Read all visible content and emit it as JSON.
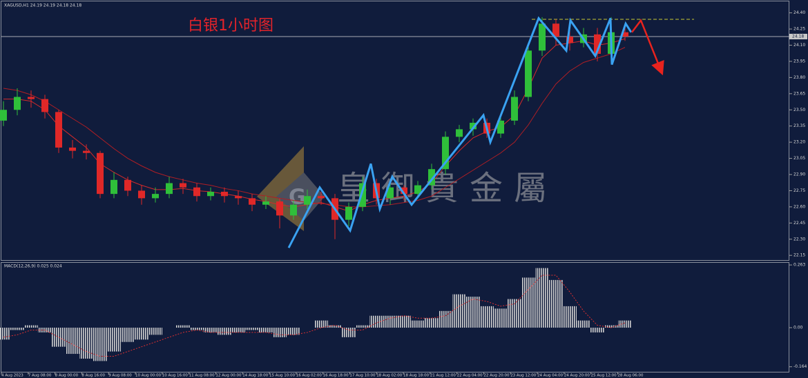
{
  "chart_data": {
    "type": "candlestick",
    "header": "XAGUSD,H1  24.19 24.19 24.18 24.18",
    "title": "白银1小时图",
    "watermark": "皇御貴金屬",
    "up_color": "#2fbf3a",
    "down_color": "#e02828",
    "open": [
      23.4,
      23.5,
      23.62,
      23.6,
      23.48,
      23.15,
      23.12,
      23.1,
      22.72,
      22.85,
      22.75,
      22.68,
      22.72,
      22.82,
      22.78,
      22.7,
      22.74,
      22.7,
      22.68,
      22.62,
      22.65,
      22.52,
      22.62,
      22.7,
      22.68,
      22.48,
      22.6,
      22.82,
      22.68,
      22.78,
      22.72,
      22.8,
      22.95,
      23.25,
      23.32,
      23.38,
      23.28,
      23.4,
      23.62,
      24.05,
      24.3,
      24.18,
      24.12,
      24.2,
      24.02,
      24.22
    ],
    "high": [
      23.58,
      23.7,
      23.68,
      23.64,
      23.5,
      23.22,
      23.18,
      23.12,
      22.92,
      22.88,
      22.8,
      22.78,
      22.88,
      22.86,
      22.82,
      22.78,
      22.78,
      22.75,
      22.72,
      22.7,
      22.68,
      22.66,
      22.76,
      22.74,
      22.72,
      22.64,
      22.88,
      22.86,
      22.82,
      22.8,
      22.84,
      23.0,
      23.3,
      23.36,
      23.42,
      23.42,
      23.44,
      23.68,
      24.12,
      24.36,
      24.34,
      24.24,
      24.26,
      24.26,
      24.36,
      24.26
    ],
    "low": [
      23.35,
      23.45,
      23.52,
      23.42,
      23.1,
      23.05,
      23.04,
      22.68,
      22.68,
      22.7,
      22.62,
      22.64,
      22.68,
      22.72,
      22.65,
      22.66,
      22.64,
      22.62,
      22.56,
      22.58,
      22.4,
      22.48,
      22.58,
      22.62,
      22.3,
      22.42,
      22.56,
      22.62,
      22.62,
      22.66,
      22.68,
      22.76,
      22.9,
      23.2,
      23.26,
      23.24,
      23.24,
      23.36,
      23.58,
      24.0,
      24.1,
      24.05,
      24.08,
      23.95,
      23.98,
      24.14
    ],
    "close": [
      23.5,
      23.62,
      23.6,
      23.48,
      23.15,
      23.12,
      23.1,
      22.72,
      22.85,
      22.75,
      22.68,
      22.72,
      22.82,
      22.78,
      22.7,
      22.74,
      22.7,
      22.68,
      22.62,
      22.65,
      22.52,
      22.62,
      22.7,
      22.68,
      22.48,
      22.6,
      22.82,
      22.68,
      22.78,
      22.72,
      22.8,
      22.95,
      23.25,
      23.32,
      23.38,
      23.28,
      23.4,
      23.62,
      24.05,
      24.3,
      24.18,
      24.12,
      24.2,
      24.02,
      24.22,
      24.18
    ],
    "ma": [
      {
        "color": "#d42a2a",
        "values": [
          23.6,
          23.6,
          23.58,
          23.5,
          23.35,
          23.25,
          23.15,
          23.0,
          22.92,
          22.85,
          22.8,
          22.76,
          22.76,
          22.77,
          22.75,
          22.74,
          22.72,
          22.7,
          22.67,
          22.65,
          22.62,
          22.6,
          22.62,
          22.64,
          22.6,
          22.56,
          22.62,
          22.66,
          22.68,
          22.7,
          22.74,
          22.82,
          22.98,
          23.12,
          23.24,
          23.3,
          23.34,
          23.45,
          23.7,
          23.98,
          24.1,
          24.12,
          24.14,
          24.1,
          24.12,
          24.16
        ]
      },
      {
        "color": "#b01e24",
        "values": [
          23.7,
          23.68,
          23.64,
          23.58,
          23.5,
          23.42,
          23.34,
          23.24,
          23.14,
          23.05,
          22.98,
          22.92,
          22.88,
          22.85,
          22.82,
          22.8,
          22.77,
          22.75,
          22.72,
          22.7,
          22.68,
          22.66,
          22.64,
          22.63,
          22.62,
          22.6,
          22.6,
          22.61,
          22.62,
          22.64,
          22.66,
          22.7,
          22.78,
          22.86,
          22.94,
          23.02,
          23.1,
          23.2,
          23.36,
          23.56,
          23.74,
          23.86,
          23.94,
          23.98,
          24.02,
          24.08
        ]
      }
    ],
    "zigzag": {
      "color": "#3aa2f2",
      "x": [
        20.65,
        22.9,
        25.1,
        26.6,
        27.25,
        28.15,
        29.55,
        34.75,
        35.25,
        38.75,
        40.75,
        41.05,
        42.85,
        43.95,
        44.05,
        45.05,
        45.45
      ],
      "y": [
        22.22,
        22.78,
        22.38,
        23.0,
        22.58,
        22.88,
        22.62,
        23.45,
        23.2,
        24.35,
        24.05,
        24.33,
        24.0,
        24.35,
        23.92,
        24.3,
        24.22
      ]
    },
    "arrow": {
      "color": "#e8231e",
      "x": [
        45.5,
        46.15,
        47.65
      ],
      "y": [
        24.22,
        24.33,
        23.85
      ]
    },
    "resistance": {
      "color": "#c8c832",
      "value": 24.34,
      "x": [
        38.25,
        50
      ]
    },
    "current_price": 24.18,
    "ylim": [
      22.1,
      24.5
    ],
    "yticks": [
      {
        "value": 24.4,
        "label": "24.40"
      },
      24.25,
      {
        "value": 24.1,
        "label": "24.10"
      },
      23.95,
      {
        "value": 23.8,
        "label": "23.80"
      },
      23.65,
      {
        "value": 23.5,
        "label": "23.50"
      },
      23.35,
      {
        "value": 23.2,
        "label": "23.20"
      },
      23.05,
      {
        "value": 22.9,
        "label": "22.90"
      },
      22.75,
      {
        "value": 22.6,
        "label": "22.60"
      },
      22.45,
      {
        "value": 22.3,
        "label": "22.30"
      },
      22.15
    ],
    "x_labels": [
      "4 Aug 2023",
      "7 Aug 08:00",
      "8 Aug 00:00",
      "8 Aug 16:00",
      "9 Aug 08:00",
      "10 Aug 00:00",
      "10 Aug 16:00",
      "11 Aug 08:00",
      "12 Aug 00:00",
      "14 Aug 18:00",
      "15 Aug 10:00",
      "16 Aug 02:00",
      "16 Aug 18:00",
      "17 Aug 10:00",
      "18 Aug 02:00",
      "18 Aug 18:00",
      "21 Aug 12:00",
      "22 Aug 04:00",
      "22 Aug 20:00",
      "23 Aug 12:00",
      "24 Aug 04:00",
      "24 Aug 20:00",
      "25 Aug 12:00",
      "28 Aug 06:00"
    ],
    "macd": {
      "label": "MACD(12,26,9) 0.025 0.024",
      "hist": [
        -0.05,
        -0.01,
        0.01,
        -0.02,
        -0.08,
        -0.11,
        -0.13,
        -0.14,
        -0.1,
        -0.06,
        -0.05,
        -0.03,
        0.0,
        0.01,
        -0.01,
        -0.02,
        -0.03,
        -0.02,
        -0.01,
        -0.02,
        -0.04,
        -0.03,
        0.0,
        0.03,
        0.01,
        -0.04,
        0.01,
        0.05,
        0.05,
        0.05,
        0.03,
        0.04,
        0.07,
        0.14,
        0.13,
        0.09,
        0.08,
        0.12,
        0.21,
        0.25,
        0.2,
        0.09,
        0.03,
        -0.02,
        0.01,
        0.03
      ],
      "signal": [
        -0.04,
        -0.03,
        -0.01,
        -0.01,
        -0.04,
        -0.07,
        -0.1,
        -0.12,
        -0.12,
        -0.1,
        -0.08,
        -0.06,
        -0.04,
        -0.02,
        -0.01,
        -0.02,
        -0.02,
        -0.02,
        -0.02,
        -0.02,
        -0.03,
        -0.03,
        -0.02,
        0.0,
        0.01,
        -0.01,
        -0.01,
        0.02,
        0.04,
        0.05,
        0.04,
        0.04,
        0.05,
        0.09,
        0.12,
        0.11,
        0.09,
        0.1,
        0.16,
        0.22,
        0.22,
        0.15,
        0.07,
        0.01,
        0.0,
        0.02
      ],
      "signal_color": "#e03030",
      "ylim": [
        -0.188,
        0.272
      ],
      "yticks": [
        0.263,
        {
          "value": 0,
          "label": "0.00"
        },
        -0.164
      ]
    }
  }
}
